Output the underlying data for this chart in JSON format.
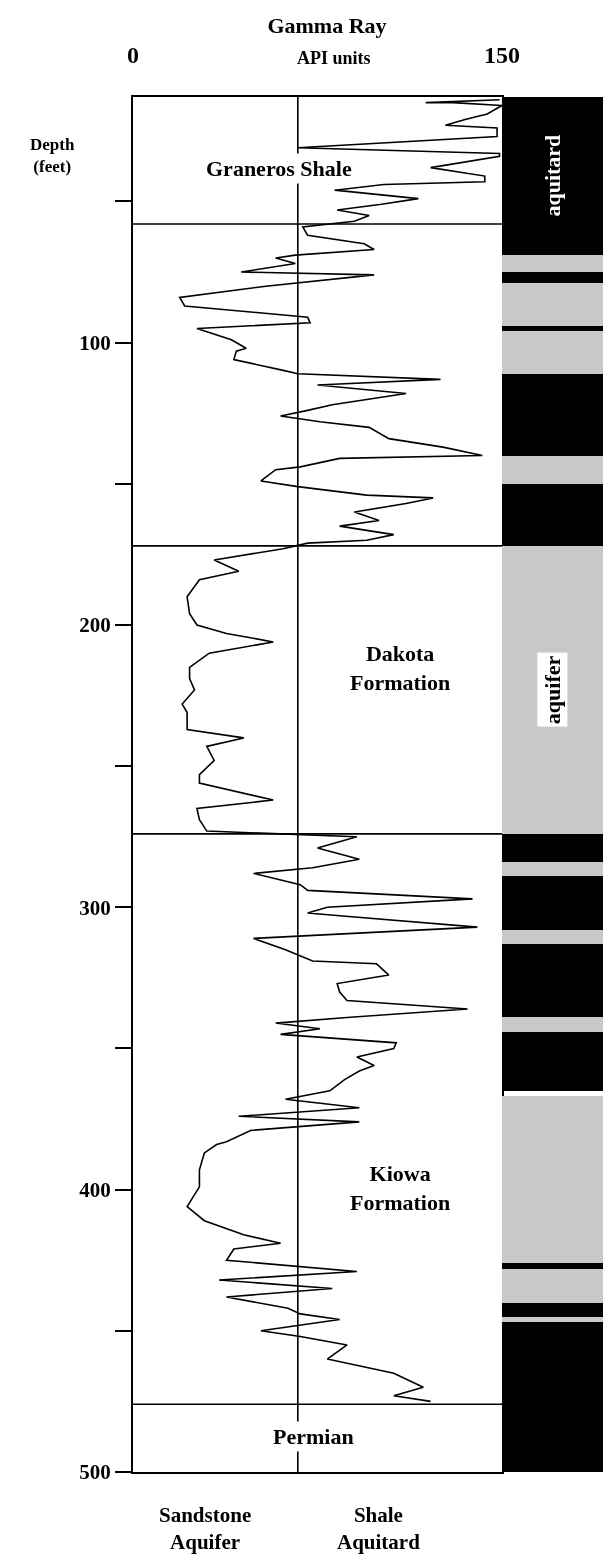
{
  "chart_data": [
    {
      "type": "line",
      "title": "Gamma Ray",
      "xlabel": "API units",
      "ylabel": "Depth (feet)",
      "xlim": [
        0,
        150
      ],
      "xticks": [
        0,
        150
      ],
      "ylim": [
        500,
        13
      ],
      "yticks": [
        {
          "value": 50,
          "label": null
        },
        100,
        {
          "value": 150,
          "label": null
        },
        200,
        {
          "value": 250,
          "label": null
        },
        300,
        {
          "value": 350,
          "label": null
        },
        400,
        {
          "value": 450,
          "label": null
        },
        500
      ],
      "series": [
        {
          "color": "#000000",
          "x": [
            149,
            119,
            130,
            150,
            144,
            135,
            127,
            148,
            148,
            67,
            149,
            149,
            121,
            143,
            143,
            102,
            82,
            116,
            101,
            83,
            96,
            90,
            69,
            71,
            94,
            98,
            66,
            58,
            66,
            44,
            98,
            54,
            19,
            21,
            71,
            72,
            26,
            40,
            46,
            42,
            41,
            62,
            67,
            125,
            75,
            111,
            81,
            71,
            60,
            76,
            96,
            104,
            126,
            142,
            84,
            68,
            58,
            52,
            67,
            95,
            122,
            111,
            90,
            100,
            84,
            106,
            95,
            71,
            61,
            33,
            43,
            27,
            22,
            23,
            26,
            38,
            57,
            31,
            23,
            23,
            25,
            20,
            22,
            22,
            45,
            30,
            33,
            27,
            27,
            57,
            26,
            27,
            30,
            91,
            75,
            92,
            73,
            49,
            68,
            71,
            138,
            79,
            71,
            84,
            140,
            49,
            62,
            73,
            99,
            104,
            83,
            84,
            87,
            136,
            87,
            58,
            76,
            60,
            107,
            106,
            91,
            98,
            92,
            86,
            80,
            62,
            92,
            43,
            92,
            48,
            38,
            34,
            29,
            27,
            27,
            22,
            29,
            45,
            60,
            41,
            38,
            91,
            35,
            81,
            38,
            63,
            68,
            84,
            52,
            68,
            87,
            79,
            106,
            118,
            106,
            121
          ],
          "values": [
            14,
            15,
            15,
            16,
            19,
            21,
            23,
            24,
            27,
            31,
            33,
            34,
            38,
            41,
            43,
            44,
            46,
            49,
            51,
            53,
            55,
            57,
            59,
            62,
            65,
            67,
            69,
            70,
            72,
            75,
            76,
            80,
            84,
            87,
            91,
            93,
            95,
            99,
            102,
            103,
            106,
            110,
            111,
            113,
            115,
            118,
            122,
            124,
            126,
            128,
            130,
            134,
            137,
            140,
            141,
            144,
            145,
            149,
            151,
            154,
            155,
            157,
            160,
            163,
            165,
            168,
            170,
            171,
            173,
            177,
            181,
            184,
            190,
            196,
            200,
            203,
            206,
            210,
            215,
            219,
            223,
            228,
            231,
            237,
            240,
            243,
            248,
            253,
            256,
            262,
            265,
            269,
            273,
            275,
            279,
            283,
            286,
            288,
            292,
            294,
            297,
            300,
            302,
            303,
            307,
            311,
            315,
            319,
            320,
            324,
            327,
            330,
            333,
            336,
            339,
            341,
            343,
            345,
            348,
            350,
            353,
            356,
            358,
            361,
            365,
            368,
            371,
            374,
            376,
            379,
            383,
            384,
            387,
            393,
            399,
            406,
            411,
            416,
            419,
            421,
            425,
            429,
            432,
            435,
            438,
            442,
            444,
            446,
            450,
            452,
            455,
            460,
            465,
            470,
            473,
            475
          ]
        }
      ],
      "ref_lines": [
        {
          "axis": "x",
          "value": 67,
          "color": "#000000"
        },
        {
          "axis": "y",
          "value": 58,
          "color": "#000000"
        },
        {
          "axis": "y",
          "value": 172,
          "color": "#000000"
        },
        {
          "axis": "y",
          "value": 274,
          "color": "#000000"
        },
        {
          "axis": "y",
          "value": 476,
          "color": "#000000"
        }
      ],
      "annotations": [
        "Graneros Shale",
        "Dakota Formation",
        "Kiowa Formation",
        "Permian",
        "Sandstone Aquifer",
        "Shale Aquitard"
      ],
      "grid": false,
      "marker": "none",
      "line_style": "solid"
    },
    {
      "type": "bar",
      "categories": [
        null
      ],
      "ylim": [
        500,
        13
      ],
      "tick_labels": false,
      "grid": false,
      "series": [
        {
          "color": "#000000",
          "base": [
            13
          ],
          "values": [
            56
          ]
        },
        {
          "color": "#c8c8c8",
          "base": [
            69
          ],
          "values": [
            6
          ]
        },
        {
          "color": "#000000",
          "base": [
            75
          ],
          "values": [
            4
          ]
        },
        {
          "color": "#c8c8c8",
          "base": [
            79
          ],
          "values": [
            15
          ]
        },
        {
          "color": "#000000",
          "base": [
            94
          ],
          "values": [
            2
          ]
        },
        {
          "color": "#c8c8c8",
          "base": [
            96
          ],
          "values": [
            15
          ]
        },
        {
          "color": "#000000",
          "base": [
            111
          ],
          "values": [
            29
          ]
        },
        {
          "color": "#c8c8c8",
          "base": [
            140
          ],
          "values": [
            10
          ]
        },
        {
          "color": "#000000",
          "base": [
            150
          ],
          "values": [
            22
          ]
        },
        {
          "color": "#c8c8c8",
          "base": [
            172
          ],
          "values": [
            102
          ]
        },
        {
          "color": "#000000",
          "base": [
            274
          ],
          "values": [
            10
          ]
        },
        {
          "color": "#c8c8c8",
          "base": [
            284
          ],
          "values": [
            5
          ]
        },
        {
          "color": "#000000",
          "base": [
            289
          ],
          "values": [
            19
          ]
        },
        {
          "color": "#c8c8c8",
          "base": [
            308
          ],
          "values": [
            5
          ]
        },
        {
          "color": "#000000",
          "base": [
            313
          ],
          "values": [
            26
          ]
        },
        {
          "color": "#c8c8c8",
          "base": [
            339
          ],
          "values": [
            5
          ]
        },
        {
          "color": "#000000",
          "base": [
            344
          ],
          "values": [
            21
          ]
        },
        {
          "color": "#c8c8c8",
          "base": [
            367
          ],
          "values": [
            59
          ]
        },
        {
          "color": "#000000",
          "base": [
            426
          ],
          "values": [
            2
          ]
        },
        {
          "color": "#c8c8c8",
          "base": [
            428
          ],
          "values": [
            12
          ]
        },
        {
          "color": "#000000",
          "base": [
            440
          ],
          "values": [
            5
          ]
        },
        {
          "color": "#c8c8c8",
          "base": [
            445
          ],
          "values": [
            2
          ]
        },
        {
          "color": "#000000",
          "base": [
            447
          ],
          "values": [
            53
          ]
        }
      ],
      "annotations": [
        "aquitard",
        "aquifer"
      ]
    }
  ]
}
